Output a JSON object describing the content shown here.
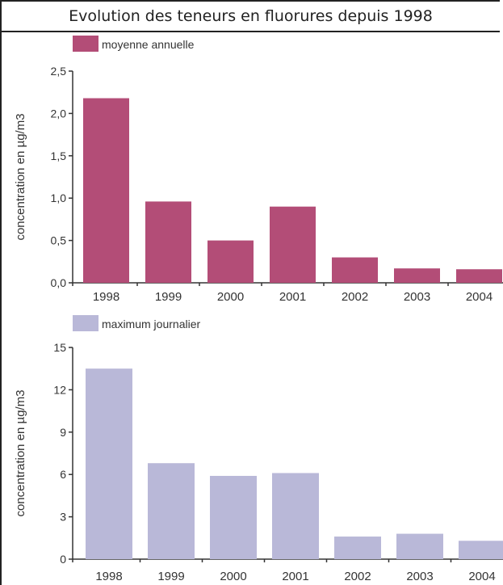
{
  "title": "Evolution des teneurs en fluorures depuis 1998",
  "colors": {
    "series1": "#b34d77",
    "series2": "#b9b8d8",
    "axis": "#333333"
  },
  "chart_data": [
    {
      "type": "bar",
      "categories": [
        "1998",
        "1999",
        "2000",
        "2001",
        "2002",
        "2003",
        "2004"
      ],
      "series": [
        {
          "name": "moyenne annuelle",
          "values": [
            2.18,
            0.96,
            0.5,
            0.9,
            0.3,
            0.17,
            0.16
          ]
        }
      ],
      "ylabel": "concentration en µg/m3",
      "ylim": [
        0,
        2.5
      ],
      "yticks": [
        "0,0",
        "0,5",
        "1,0",
        "1,5",
        "2,0",
        "2,5"
      ],
      "legend_position": "top-left",
      "grid": false
    },
    {
      "type": "bar",
      "categories": [
        "1998",
        "1999",
        "2000",
        "2001",
        "2002",
        "2003",
        "2004"
      ],
      "series": [
        {
          "name": "maximum journalier",
          "values": [
            13.5,
            6.8,
            5.9,
            6.1,
            1.6,
            1.8,
            1.3
          ]
        }
      ],
      "ylabel": "concentration en µg/m3",
      "ylim": [
        0,
        15
      ],
      "yticks": [
        "0",
        "3",
        "6",
        "9",
        "12",
        "15"
      ],
      "legend_position": "top-left",
      "grid": false
    }
  ]
}
